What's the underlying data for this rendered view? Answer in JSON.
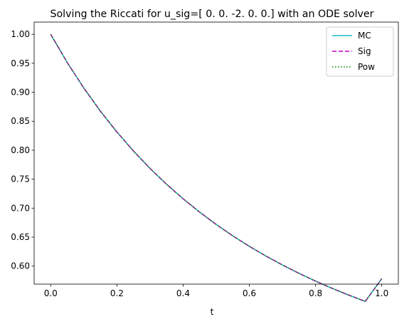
{
  "chart_data": {
    "type": "line",
    "title": "Solving the Riccati for u_sig=[ 0.  0. -2.  0.  0.] with an ODE solver",
    "xlabel": "t",
    "ylabel": "",
    "xlim": [
      -0.05,
      1.05
    ],
    "ylim": [
      0.5689,
      1.0211
    ],
    "xticks": [
      0.0,
      0.2,
      0.4,
      0.6,
      0.8,
      1.0
    ],
    "xtick_labels": [
      "0.0",
      "0.2",
      "0.4",
      "0.6",
      "0.8",
      "1.0"
    ],
    "yticks": [
      0.6,
      0.65,
      0.7,
      0.75,
      0.8,
      0.85,
      0.9,
      0.95,
      1.0
    ],
    "ytick_labels": [
      "0.60",
      "0.65",
      "0.70",
      "0.75",
      "0.80",
      "0.85",
      "0.90",
      "0.95",
      "1.00"
    ],
    "grid": false,
    "legend_position": "top-right",
    "x": [
      0.0,
      0.05,
      0.1,
      0.15,
      0.2,
      0.25,
      0.3,
      0.35,
      0.4,
      0.45,
      0.5,
      0.55,
      0.6,
      0.65,
      0.7,
      0.75,
      0.8,
      0.85,
      0.9,
      0.95,
      1.0
    ],
    "series": [
      {
        "name": "MC",
        "color": "#17becf",
        "dash": "solid",
        "values": [
          1.0,
          0.9512,
          0.9073,
          0.8675,
          0.8314,
          0.7986,
          0.7686,
          0.7412,
          0.7161,
          0.6931,
          0.6718,
          0.6522,
          0.6341,
          0.6174,
          0.6019,
          0.5875,
          0.5741,
          0.5616,
          0.55,
          0.5391,
          0.5783
        ]
      },
      {
        "name": "Sig",
        "color": "#bf00bf",
        "dash": "dashed",
        "values": [
          1.0,
          0.9512,
          0.9073,
          0.8675,
          0.8314,
          0.7986,
          0.7686,
          0.7412,
          0.7161,
          0.6931,
          0.6718,
          0.6522,
          0.6341,
          0.6174,
          0.6019,
          0.5875,
          0.5741,
          0.5616,
          0.55,
          0.5391,
          0.5783
        ]
      },
      {
        "name": "Pow",
        "color": "#008000",
        "dash": "dotted",
        "values": [
          1.0,
          0.9512,
          0.9073,
          0.8675,
          0.8314,
          0.7986,
          0.7686,
          0.7412,
          0.7161,
          0.6931,
          0.6718,
          0.6522,
          0.6341,
          0.6174,
          0.6019,
          0.5875,
          0.5741,
          0.5616,
          0.55,
          0.5391,
          0.5783
        ]
      }
    ]
  }
}
